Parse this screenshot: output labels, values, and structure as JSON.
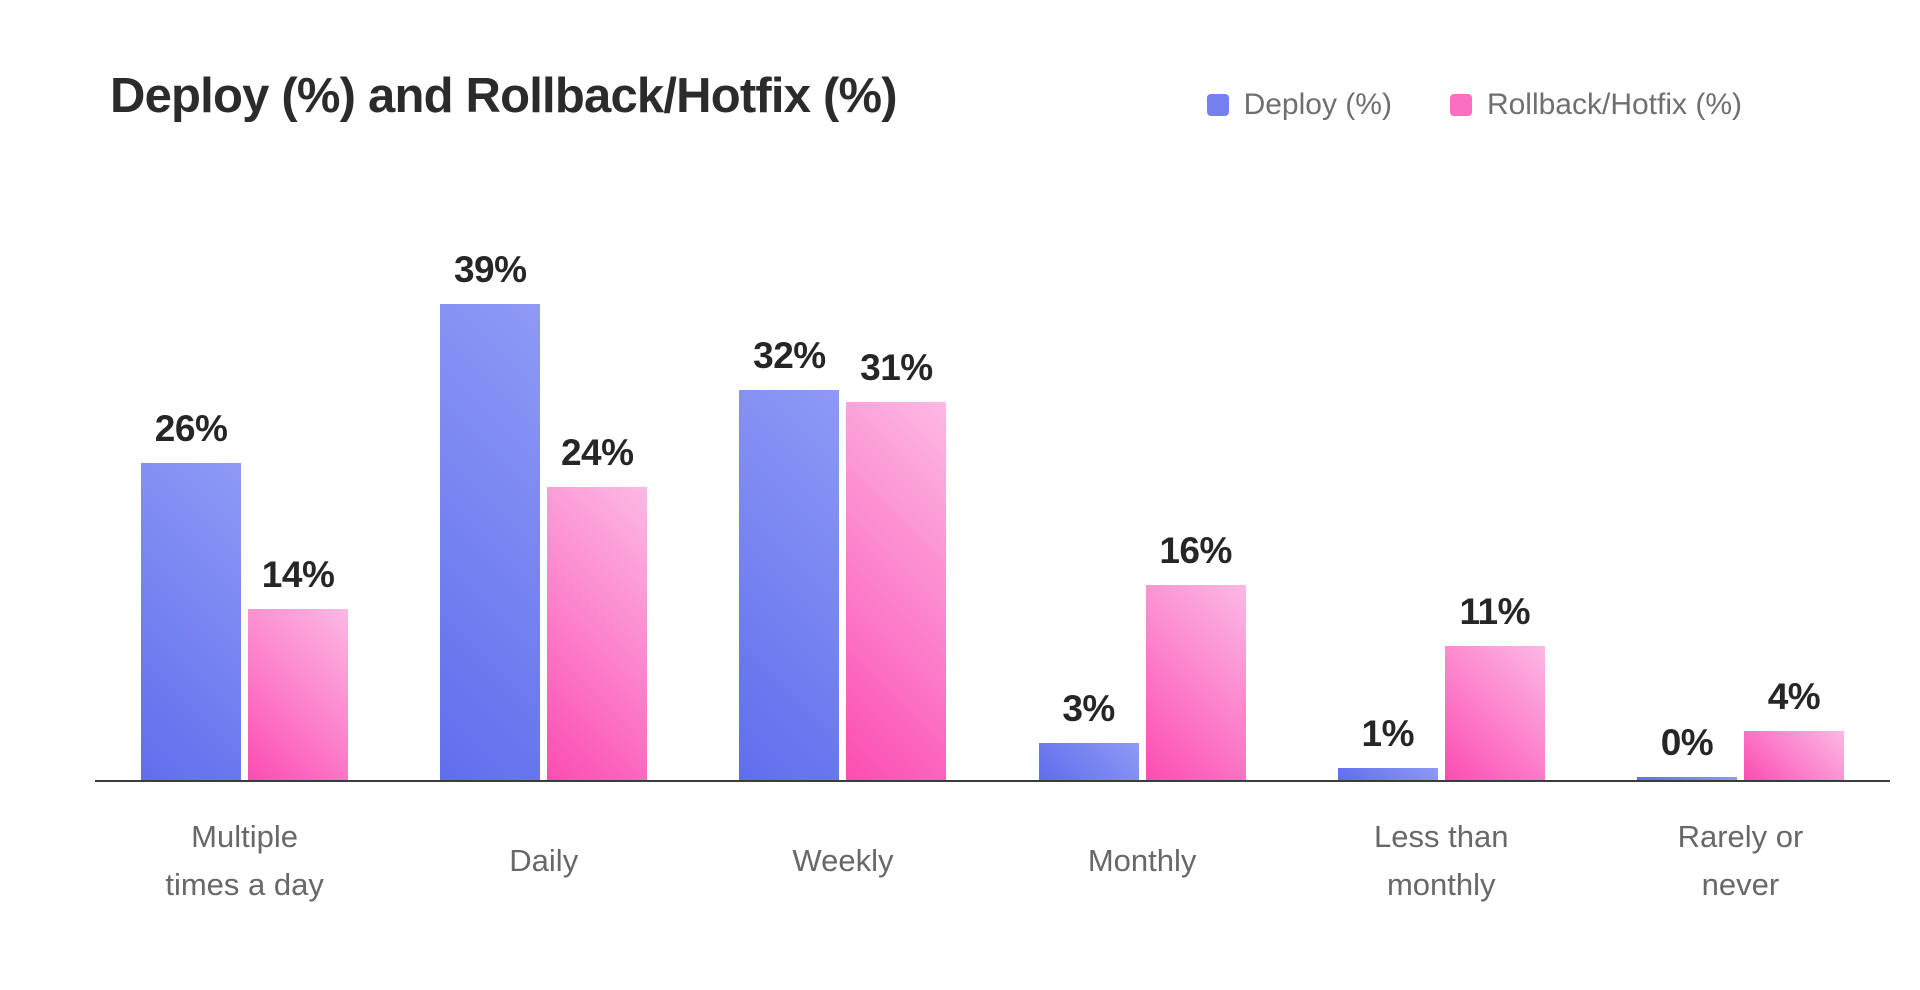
{
  "header": {
    "title": "Deploy (%) and Rollback/Hotfix (%)"
  },
  "legend": {
    "items": [
      {
        "label": "Deploy (%)",
        "color": "#7580f0"
      },
      {
        "label": "Rollback/Hotfix (%)",
        "color": "#fc6ec1"
      }
    ]
  },
  "chart_data": {
    "type": "bar",
    "title": "Deploy (%) and Rollback/Hotfix (%)",
    "categories": [
      "Multiple times a day",
      "Daily",
      "Weekly",
      "Monthly",
      "Less than monthly",
      "Rarely or never"
    ],
    "category_label_lines": [
      [
        "Multiple",
        "times a day"
      ],
      [
        "Daily"
      ],
      [
        "Weekly"
      ],
      [
        "Monthly"
      ],
      [
        "Less than",
        "monthly"
      ],
      [
        "Rarely or",
        "never"
      ]
    ],
    "series": [
      {
        "name": "Deploy (%)",
        "values": [
          26,
          39,
          32,
          3,
          1,
          0
        ],
        "color_start": "#5f6eed",
        "color_end": "#8f9af5"
      },
      {
        "name": "Rollback/Hotfix (%)",
        "values": [
          14,
          24,
          31,
          16,
          11,
          4
        ],
        "color_start": "#fb4db2",
        "color_end": "#fdb9e5"
      }
    ],
    "value_suffix": "%",
    "data_labels": true,
    "xlabel": "",
    "ylabel": "",
    "ylim": [
      0,
      45
    ],
    "grid": false,
    "legend_position": "top-right"
  }
}
